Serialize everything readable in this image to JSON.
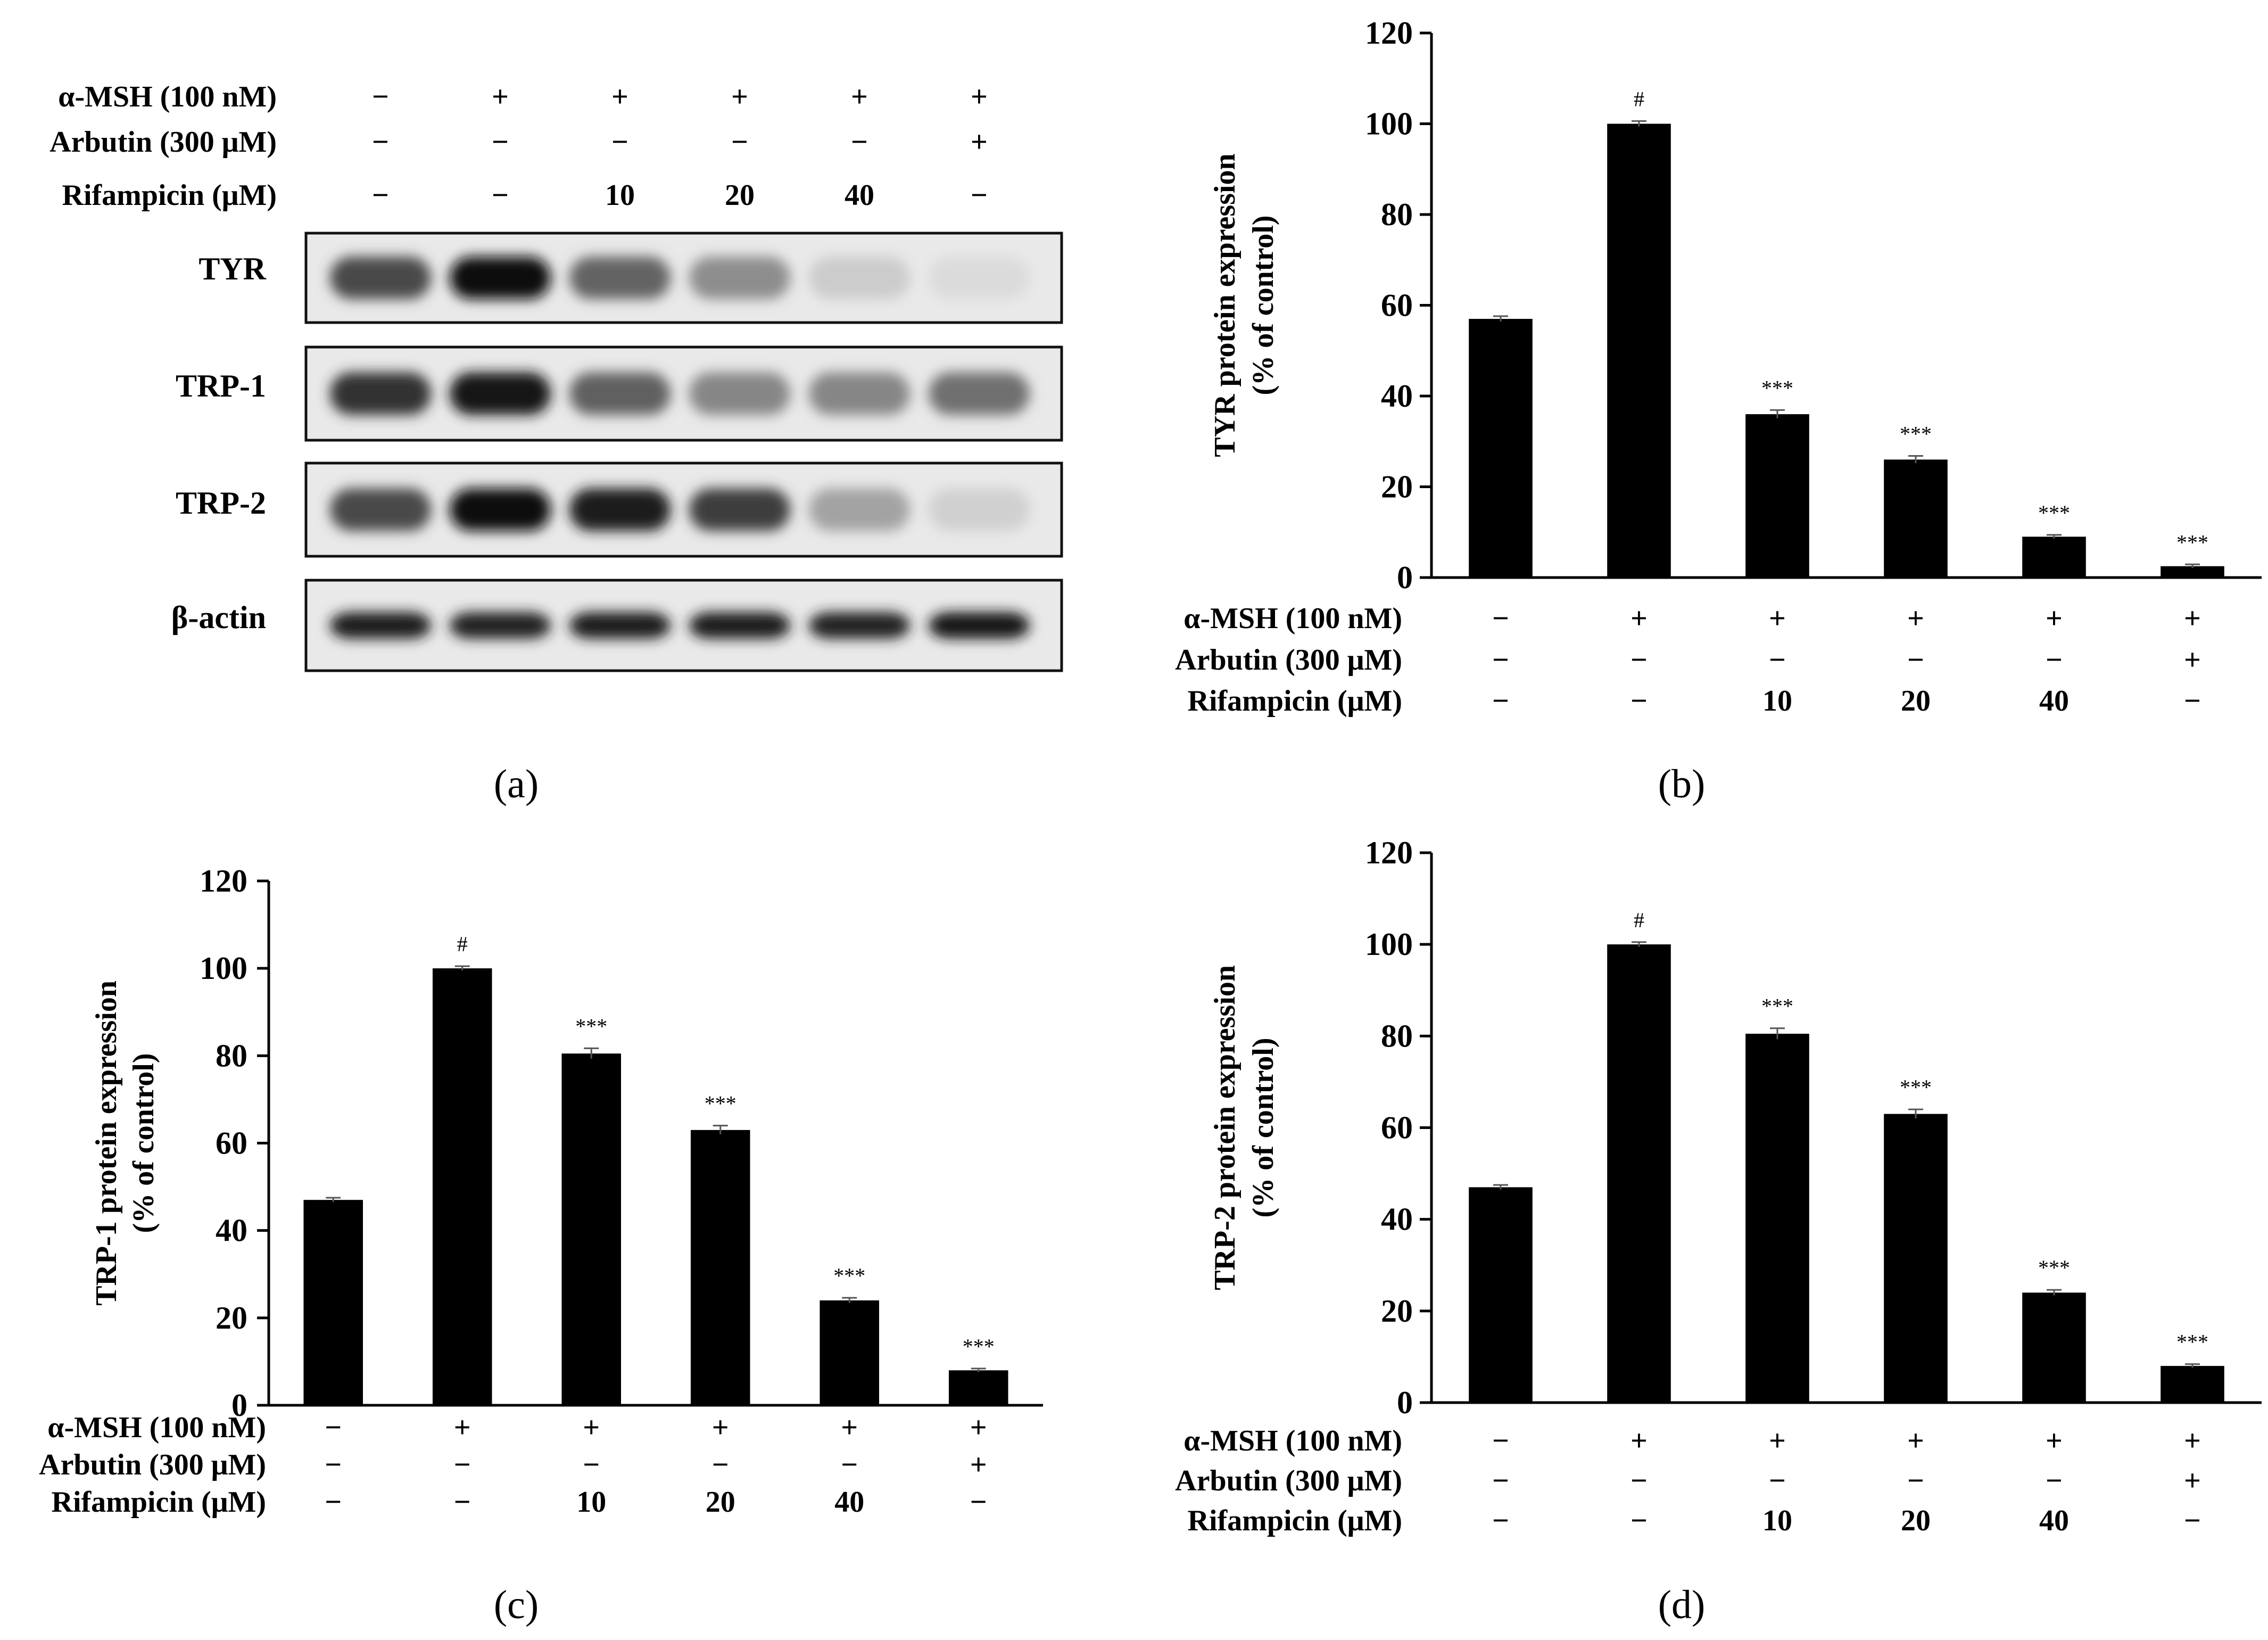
{
  "panel_letters": [
    "(a)",
    "(b)",
    "(c)",
    "(d)"
  ],
  "conditions": [
    {
      "label": "α-MSH (100 nM)",
      "values": [
        "−",
        "+",
        "+",
        "+",
        "+",
        "+"
      ]
    },
    {
      "label": "Arbutin (300 μM)",
      "values": [
        "−",
        "−",
        "−",
        "−",
        "−",
        "+"
      ]
    },
    {
      "label": "Rifampicin (μM)",
      "values": [
        "−",
        "−",
        "10",
        "20",
        "40",
        "−"
      ]
    }
  ],
  "blot": {
    "bands": [
      {
        "label": "TYR",
        "intensities": [
          0.72,
          0.98,
          0.6,
          0.42,
          0.14,
          0.07
        ]
      },
      {
        "label": "TRP-1",
        "intensities": [
          0.82,
          0.95,
          0.62,
          0.45,
          0.45,
          0.55
        ]
      },
      {
        "label": "TRP-2",
        "intensities": [
          0.72,
          0.98,
          0.92,
          0.78,
          0.32,
          0.12
        ]
      },
      {
        "label": "β-actin",
        "intensities": [
          0.92,
          0.9,
          0.92,
          0.92,
          0.9,
          0.95
        ]
      }
    ]
  },
  "chart_data": [
    {
      "type": "bar",
      "panel": "(b)",
      "ylabel": [
        "TYR protein expression",
        "(% of control)"
      ],
      "ylim": [
        0,
        120
      ],
      "yticks": [
        "0",
        "20",
        "40",
        "60",
        "80",
        "100",
        "120"
      ],
      "values": [
        57,
        100,
        36,
        26,
        9,
        2.5
      ],
      "errors": [
        0.6,
        0.6,
        0.9,
        0.8,
        0.4,
        0.4
      ],
      "annotations": [
        "",
        "#",
        "***",
        "***",
        "***",
        "***"
      ],
      "color": "#000000"
    },
    {
      "type": "bar",
      "panel": "(c)",
      "ylabel": [
        "TRP-1 protein expression",
        "(% of control)"
      ],
      "ylim": [
        0,
        120
      ],
      "yticks": [
        "0",
        "20",
        "40",
        "60",
        "80",
        "100",
        "120"
      ],
      "values": [
        47,
        100,
        80.5,
        63,
        24,
        8
      ],
      "errors": [
        0.5,
        0.5,
        1.2,
        1.0,
        0.6,
        0.4
      ],
      "annotations": [
        "",
        "#",
        "***",
        "***",
        "***",
        "***"
      ],
      "color": "#000000"
    },
    {
      "type": "bar",
      "panel": "(d)",
      "ylabel": [
        "TRP-2 protein expression",
        "(% of control)"
      ],
      "ylim": [
        0,
        120
      ],
      "yticks": [
        "0",
        "20",
        "40",
        "60",
        "80",
        "100",
        "120"
      ],
      "values": [
        47,
        100,
        80.5,
        63,
        24,
        8
      ],
      "errors": [
        0.5,
        0.5,
        1.2,
        1.0,
        0.6,
        0.4
      ],
      "annotations": [
        "",
        "#",
        "***",
        "***",
        "***",
        "***"
      ],
      "color": "#000000"
    }
  ]
}
